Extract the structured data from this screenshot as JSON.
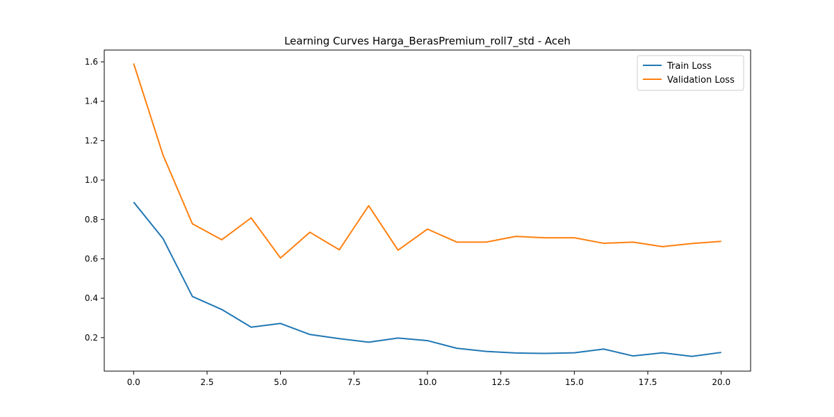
{
  "chart_data": {
    "type": "line",
    "title": "Learning Curves Harga_BerasPremium_roll7_std - Aceh",
    "xlabel": "",
    "ylabel": "",
    "xlim": [
      -1.0,
      21.0
    ],
    "ylim": [
      0.03,
      1.66
    ],
    "x_ticks": [
      0.0,
      2.5,
      5.0,
      7.5,
      10.0,
      12.5,
      15.0,
      17.5,
      20.0
    ],
    "x_tick_labels": [
      "0.0",
      "2.5",
      "5.0",
      "7.5",
      "10.0",
      "12.5",
      "15.0",
      "17.5",
      "20.0"
    ],
    "y_ticks": [
      0.2,
      0.4,
      0.6,
      0.8,
      1.0,
      1.2,
      1.4,
      1.6
    ],
    "y_tick_labels": [
      "0.2",
      "0.4",
      "0.6",
      "0.8",
      "1.0",
      "1.2",
      "1.4",
      "1.6"
    ],
    "grid": false,
    "legend_position": "top-right",
    "x": [
      0,
      1,
      2,
      3,
      4,
      5,
      6,
      7,
      8,
      9,
      10,
      11,
      12,
      13,
      14,
      15,
      16,
      17,
      18,
      19,
      20
    ],
    "series": [
      {
        "name": "Train Loss",
        "color": "#1f77b4",
        "values": [
          0.888,
          0.703,
          0.409,
          0.343,
          0.253,
          0.272,
          0.216,
          0.195,
          0.177,
          0.198,
          0.185,
          0.146,
          0.13,
          0.122,
          0.12,
          0.123,
          0.142,
          0.107,
          0.123,
          0.105,
          0.125
        ]
      },
      {
        "name": "Validation Loss",
        "color": "#ff7f0e",
        "values": [
          1.592,
          1.127,
          0.778,
          0.697,
          0.808,
          0.604,
          0.735,
          0.646,
          0.87,
          0.644,
          0.751,
          0.685,
          0.685,
          0.714,
          0.707,
          0.707,
          0.679,
          0.685,
          0.662,
          0.678,
          0.689
        ]
      }
    ]
  }
}
